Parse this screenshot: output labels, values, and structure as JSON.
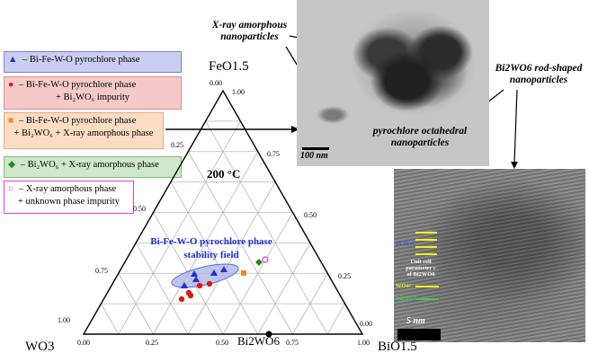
{
  "legend": [
    {
      "marker": "▲",
      "color": "#1f2fd0",
      "line1": " – Bi-Fe-W-O pyrochlore phase",
      "line2": ""
    },
    {
      "marker": "●",
      "color": "#e01515",
      "line1": " – Bi-Fe-W-O pyrochlore phase",
      "line2": "+ Bi₂WO₆ impurity"
    },
    {
      "marker": "■",
      "color": "#f28a1e",
      "line1": " – Bi-Fe-W-O pyrochlore phase",
      "line2": "+ Bi₂WO₆ + X-ray amorphous phase"
    },
    {
      "marker": "◆",
      "color": "#1e8a1e",
      "line1": " – Bi₂WO₆ + X-ray amorphous phase",
      "line2": ""
    },
    {
      "marker": "○",
      "color": "#d03cd0",
      "line1": " – X-ray amorphous phase",
      "line2": "+ unknown phase impurity"
    }
  ],
  "diagram": {
    "apex_top": "FeO1.5",
    "apex_left": "WO3",
    "apex_right": "BiO1.5",
    "bottom_label": "Bi2WO6",
    "temperature": "200 °C",
    "field_label_1": "Bi-Fe-W-O pyrochlore phase",
    "field_label_2": "stability field",
    "ticks_left": [
      "1.00",
      "0.75",
      "0.50",
      "0.25",
      "0.00"
    ],
    "ticks_right": [
      "1.00",
      "0.75",
      "0.50",
      "0.25",
      "0.00"
    ],
    "ticks_bottom": [
      "0.00",
      "0.25",
      "0.50",
      "0.75",
      "1.00"
    ]
  },
  "tem_top": {
    "label_xray_1": "X-ray amorphous",
    "label_xray_2": "nanoparticles",
    "label_rod_1": "Bi2WO6 rod-shaped",
    "label_rod_2": "nanoparticles",
    "label_pyro_1": "pyrochlore octahedral",
    "label_pyro_2": "nanoparticles",
    "scalebar": "100 nm"
  },
  "tem_bottom": {
    "spacing": "16.33 Å",
    "unit_cell_1": "Unit cell",
    "unit_cell_2": "parameter c",
    "unit_cell_3": "of Bi2WO6",
    "wo4": "WO4²⁻",
    "bi2o2": "Bi2O2²⁺",
    "scalebar": "5 nm"
  },
  "colors": {
    "pyrochlore": "#1f2fd0",
    "pyro_bi2wo6": "#e01515",
    "pyro_amorph": "#f28a1e",
    "bi2wo6_amorph": "#1e8a1e",
    "amorph_unknown": "#d03cd0",
    "field_fill": "#aab2e8"
  }
}
